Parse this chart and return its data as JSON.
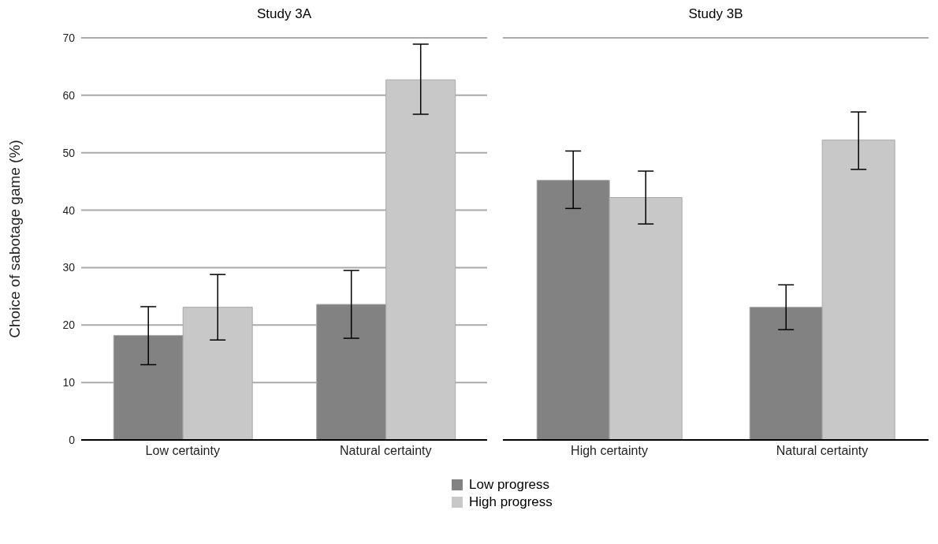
{
  "chart_data": [
    {
      "type": "bar",
      "title": "Study 3A",
      "ylabel": "Choice of sabotage game (%)",
      "categories": [
        "Low certainty",
        "Natural certainty"
      ],
      "series": [
        {
          "name": "Low progress",
          "color": "#828282",
          "values": [
            18.2,
            23.6
          ],
          "errors": [
            [
              13.1,
              23.2
            ],
            [
              17.7,
              29.5
            ]
          ]
        },
        {
          "name": "High progress",
          "color": "#c8c8c8",
          "values": [
            23.1,
            62.7
          ],
          "errors": [
            [
              17.4,
              28.8
            ],
            [
              56.7,
              68.9
            ]
          ]
        }
      ],
      "ylim": [
        0,
        70
      ],
      "yticks": [
        0,
        10,
        20,
        30,
        40,
        50,
        60,
        70
      ],
      "grid": "y",
      "legend": "bottom"
    },
    {
      "type": "bar",
      "title": "Study 3B",
      "categories": [
        "High certainty",
        "Natural certainty"
      ],
      "series": [
        {
          "color": "#828282",
          "values": [
            45.2,
            23.1
          ],
          "errors": [
            [
              40.3,
              50.3
            ],
            [
              19.2,
              27.0
            ]
          ]
        },
        {
          "color": "#c8c8c8",
          "values": [
            42.2,
            52.2
          ],
          "errors": [
            [
              37.6,
              46.8
            ],
            [
              47.1,
              57.1
            ]
          ]
        }
      ],
      "ylim": [
        0,
        70
      ],
      "yticks": [
        0,
        10,
        20,
        30,
        40,
        50,
        60,
        70
      ],
      "grid": "y",
      "tick_labels": "x"
    }
  ]
}
